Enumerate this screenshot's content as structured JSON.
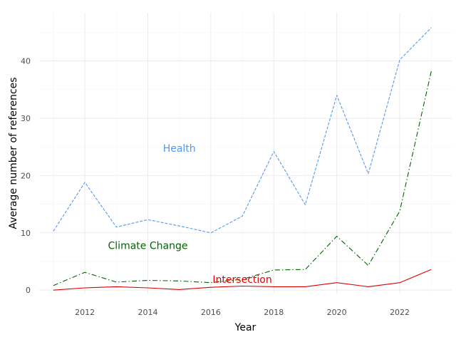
{
  "chart_data": {
    "type": "line",
    "xlabel": "Year",
    "ylabel": "Average number of references",
    "xlim": [
      2010.55,
      2023.65
    ],
    "ylim": [
      -0.6,
      48.4
    ],
    "x_ticks": [
      2012,
      2014,
      2016,
      2018,
      2020,
      2022
    ],
    "y_ticks": [
      0,
      10,
      20,
      30,
      40
    ],
    "grid": true,
    "x": [
      2011,
      2012,
      2013,
      2014,
      2015,
      2016,
      2017,
      2018,
      2019,
      2020,
      2021,
      2022,
      2023
    ],
    "series": [
      {
        "name": "Health",
        "color": "#5599ee",
        "line_style": "dashed",
        "label_anchor": [
          2015,
          24.8
        ],
        "values": [
          10.3,
          18.8,
          11.0,
          12.3,
          11.2,
          10.0,
          12.9,
          24.2,
          14.9,
          34.0,
          20.3,
          40.2,
          45.8
        ]
      },
      {
        "name": "Climate Change",
        "color": "#006400",
        "line_style": "dashdot",
        "label_anchor": [
          2014,
          7.8
        ],
        "values": [
          0.8,
          3.1,
          1.4,
          1.7,
          1.6,
          1.3,
          1.9,
          3.5,
          3.6,
          9.4,
          4.3,
          13.8,
          38.2
        ]
      },
      {
        "name": "Intersection",
        "color": "#dd0000",
        "line_style": "solid",
        "label_anchor": [
          2017,
          1.9
        ],
        "values": [
          0.0,
          0.4,
          0.6,
          0.4,
          0.1,
          0.5,
          0.7,
          0.6,
          0.6,
          1.3,
          0.6,
          1.3,
          3.6
        ]
      }
    ]
  }
}
